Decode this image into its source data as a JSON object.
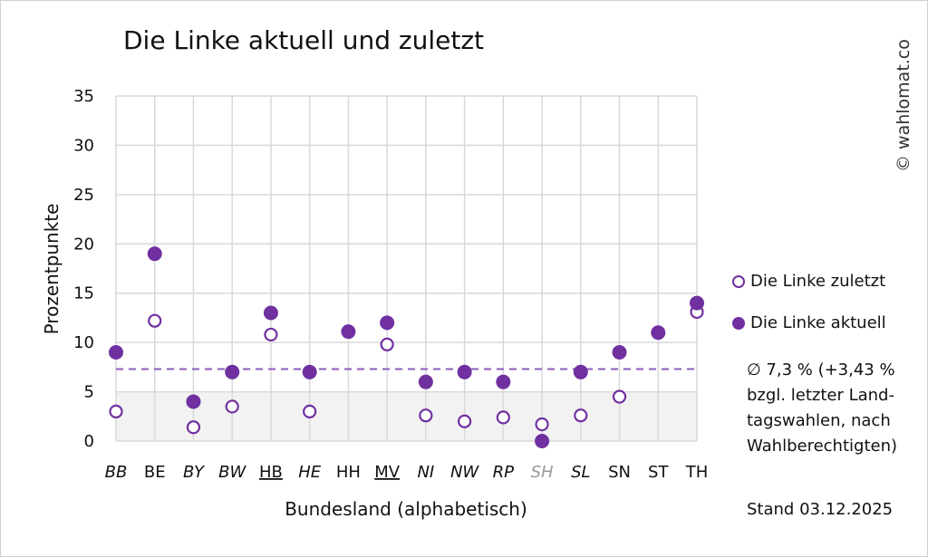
{
  "chart_data": {
    "type": "scatter",
    "title": "Die Linke aktuell und zuletzt",
    "xlabel": "Bundesland (alphabetisch)",
    "ylabel": "Prozentpunkte",
    "ylim": [
      0,
      35
    ],
    "yticks": [
      "0",
      "5",
      "10",
      "15",
      "20",
      "25",
      "30",
      "35"
    ],
    "grid": true,
    "legend_position": "right",
    "categories": [
      "BB",
      "BE",
      "BY",
      "BW",
      "HB",
      "HE",
      "HH",
      "MV",
      "NI",
      "NW",
      "RP",
      "SH",
      "SL",
      "SN",
      "ST",
      "TH"
    ],
    "category_style": [
      "italic",
      "normal",
      "italic",
      "italic",
      "underline",
      "italic",
      "normal",
      "underline",
      "italic",
      "italic",
      "italic",
      "italic-grey",
      "italic",
      "normal",
      "normal",
      "normal"
    ],
    "series": [
      {
        "name": "Die Linke zuletzt",
        "marker": "open-circle",
        "values": [
          3.0,
          12.2,
          1.4,
          3.5,
          10.8,
          3.0,
          null,
          9.8,
          2.6,
          2.0,
          2.4,
          1.7,
          2.6,
          4.5,
          null,
          13.1
        ]
      },
      {
        "name": "Die Linke aktuell",
        "marker": "filled-circle",
        "values": [
          9.0,
          19.0,
          4.0,
          7.0,
          13.0,
          7.0,
          11.1,
          12.0,
          6.0,
          7.0,
          6.0,
          0.0,
          7.0,
          9.0,
          11.0,
          14.0
        ]
      }
    ],
    "average_line": 7.3,
    "shaded_band": [
      0,
      5
    ],
    "colors": {
      "series": "#7030A0",
      "band": "#f2f2f2",
      "grid": "#d9d9d9",
      "grey_label": "#999999"
    }
  },
  "note": "∅ 7,3 % (+3,43 % bzgl. letzter Land-tagswahlen, nach Wahlberechtigten)",
  "stand": "Stand 03.12.2025",
  "credit": "© wahlomat.co"
}
